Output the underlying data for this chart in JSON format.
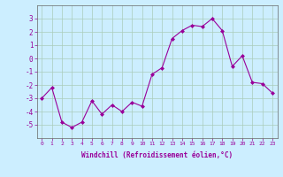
{
  "x": [
    0,
    1,
    2,
    3,
    4,
    5,
    6,
    7,
    8,
    9,
    10,
    11,
    12,
    13,
    14,
    15,
    16,
    17,
    18,
    19,
    20,
    21,
    22,
    23
  ],
  "y": [
    -3.0,
    -2.2,
    -4.8,
    -5.2,
    -4.8,
    -3.2,
    -4.2,
    -3.5,
    -4.0,
    -3.3,
    -3.6,
    -1.2,
    -0.7,
    1.5,
    2.1,
    2.5,
    2.4,
    3.0,
    2.1,
    -0.6,
    0.2,
    -1.8,
    -1.9,
    -2.6
  ],
  "ylim": [
    -6,
    4
  ],
  "yticks": [
    -5,
    -4,
    -3,
    -2,
    -1,
    0,
    1,
    2,
    3
  ],
  "line_color": "#990099",
  "marker_color": "#990099",
  "bg_color": "#cceeff",
  "grid_color": "#aaccbb",
  "xlabel": "Windchill (Refroidissement éolien,°C)",
  "title": "",
  "fig_bg": "#cceeff"
}
